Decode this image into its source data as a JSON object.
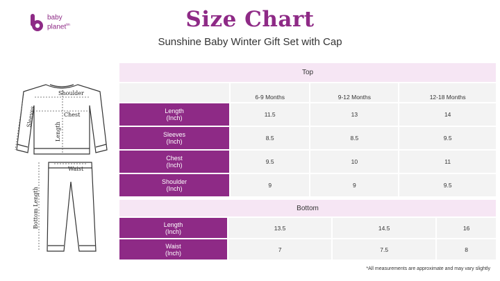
{
  "brand": {
    "line1": "baby",
    "line2": "planet",
    "tm": "tm",
    "color": "#8e2a86"
  },
  "title": "Size Chart",
  "subtitle": "Sunshine Baby Winter Gift Set with Cap",
  "illustration": {
    "shoulder": "Shoulder",
    "chest": "Chest",
    "sleeves": "Sleeves",
    "length": "Length",
    "waist": "Waist",
    "bottom_length": "Bottom Length"
  },
  "top_table": {
    "heading": "Top",
    "columns": [
      "6-9 Months",
      "9-12 Months",
      "12-18 Months"
    ],
    "rows": [
      {
        "label1": "Length",
        "label2": "(Inch)",
        "values": [
          "11.5",
          "13",
          "14"
        ]
      },
      {
        "label1": "Sleeves",
        "label2": "(Inch)",
        "values": [
          "8.5",
          "8.5",
          "9.5"
        ]
      },
      {
        "label1": "Chest",
        "label2": "(Inch)",
        "values": [
          "9.5",
          "10",
          "11"
        ]
      },
      {
        "label1": "Shoulder",
        "label2": "(Inch)",
        "values": [
          "9",
          "9",
          "9.5"
        ]
      }
    ]
  },
  "bottom_table": {
    "heading": "Bottom",
    "rows": [
      {
        "label1": "Length",
        "label2": "(Inch)",
        "values": [
          "13.5",
          "14.5",
          "16"
        ]
      },
      {
        "label1": "Waist",
        "label2": "(Inch)",
        "values": [
          "7",
          "7.5",
          "8"
        ]
      }
    ]
  },
  "note": "*All measurements are approximate and may vary slightly",
  "colors": {
    "accent": "#8e2a86",
    "header_bg": "#f6e6f4",
    "cell_bg": "#f3f3f3"
  }
}
